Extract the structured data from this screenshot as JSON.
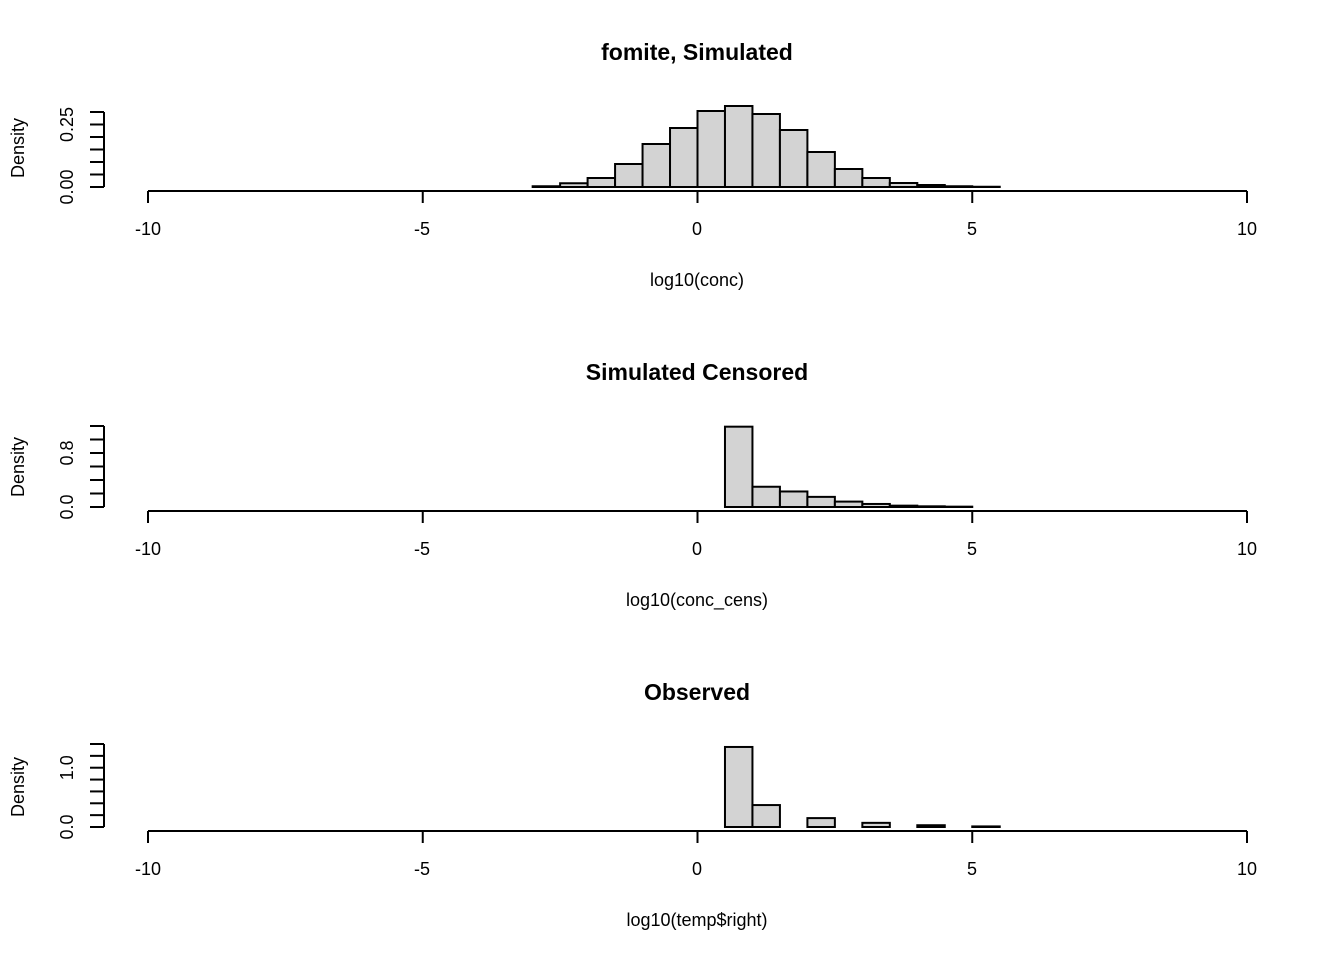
{
  "chart_data": [
    {
      "type": "bar",
      "title": "fomite, Simulated",
      "xlabel": "log10(conc)",
      "ylabel": "Density",
      "xlim": [
        -10,
        10
      ],
      "ylim": [
        0,
        0.3
      ],
      "x_ticks": [
        -10,
        -5,
        0,
        5,
        10
      ],
      "x_tick_labels": [
        "-10",
        "-5",
        "0",
        "5",
        "10"
      ],
      "y_ticks": [
        0,
        0.05,
        0.1,
        0.15,
        0.2,
        0.25,
        0.3
      ],
      "y_tick_labels": [
        {
          "value": 0,
          "label": "0.00"
        },
        {
          "value": 0.25,
          "label": "0.25"
        }
      ],
      "bin_width": 0.5,
      "bins": [
        {
          "x0": -3.0,
          "x1": -2.5,
          "density": 0.003
        },
        {
          "x0": -2.5,
          "x1": -2.0,
          "density": 0.015
        },
        {
          "x0": -2.0,
          "x1": -1.5,
          "density": 0.036
        },
        {
          "x0": -1.5,
          "x1": -1.0,
          "density": 0.092
        },
        {
          "x0": -1.0,
          "x1": -0.5,
          "density": 0.172
        },
        {
          "x0": -0.5,
          "x1": 0.0,
          "density": 0.236
        },
        {
          "x0": 0.0,
          "x1": 0.5,
          "density": 0.304
        },
        {
          "x0": 0.5,
          "x1": 1.0,
          "density": 0.324
        },
        {
          "x0": 1.0,
          "x1": 1.5,
          "density": 0.292
        },
        {
          "x0": 1.5,
          "x1": 2.0,
          "density": 0.228
        },
        {
          "x0": 2.0,
          "x1": 2.5,
          "density": 0.14
        },
        {
          "x0": 2.5,
          "x1": 3.0,
          "density": 0.072
        },
        {
          "x0": 3.0,
          "x1": 3.5,
          "density": 0.036
        },
        {
          "x0": 3.5,
          "x1": 4.0,
          "density": 0.016
        },
        {
          "x0": 4.0,
          "x1": 4.5,
          "density": 0.008
        },
        {
          "x0": 4.5,
          "x1": 5.0,
          "density": 0.003
        },
        {
          "x0": 5.0,
          "x1": 5.5,
          "density": 0.001
        }
      ]
    },
    {
      "type": "bar",
      "title": "Simulated Censored",
      "xlabel": "log10(conc_cens)",
      "ylabel": "Density",
      "xlim": [
        -10,
        10
      ],
      "ylim": [
        0,
        1.2
      ],
      "x_ticks": [
        -10,
        -5,
        0,
        5,
        10
      ],
      "x_tick_labels": [
        "-10",
        "-5",
        "0",
        "5",
        "10"
      ],
      "y_ticks": [
        0,
        0.2,
        0.4,
        0.6,
        0.8,
        1.0,
        1.2
      ],
      "y_tick_labels": [
        {
          "value": 0,
          "label": "0.0"
        },
        {
          "value": 0.8,
          "label": "0.8"
        }
      ],
      "bin_width": 0.5,
      "bins": [
        {
          "x0": 0.5,
          "x1": 1.0,
          "density": 1.19
        },
        {
          "x0": 1.0,
          "x1": 1.5,
          "density": 0.3
        },
        {
          "x0": 1.5,
          "x1": 2.0,
          "density": 0.23
        },
        {
          "x0": 2.0,
          "x1": 2.5,
          "density": 0.15
        },
        {
          "x0": 2.5,
          "x1": 3.0,
          "density": 0.08
        },
        {
          "x0": 3.0,
          "x1": 3.5,
          "density": 0.045
        },
        {
          "x0": 3.5,
          "x1": 4.0,
          "density": 0.02
        },
        {
          "x0": 4.0,
          "x1": 4.5,
          "density": 0.01
        },
        {
          "x0": 4.5,
          "x1": 5.0,
          "density": 0.005
        }
      ]
    },
    {
      "type": "bar",
      "title": "Observed",
      "xlabel": "log10(temp$right)",
      "ylabel": "Density",
      "xlim": [
        -10,
        10
      ],
      "ylim": [
        0,
        1.4
      ],
      "x_ticks": [
        -10,
        -5,
        0,
        5,
        10
      ],
      "x_tick_labels": [
        "-10",
        "-5",
        "0",
        "5",
        "10"
      ],
      "y_ticks": [
        0,
        0.2,
        0.4,
        0.6,
        0.8,
        1.0,
        1.2,
        1.4
      ],
      "y_tick_labels": [
        {
          "value": 0,
          "label": "0.0"
        },
        {
          "value": 1.0,
          "label": "1.0"
        }
      ],
      "bin_width": 0.5,
      "bins": [
        {
          "x0": 0.5,
          "x1": 1.0,
          "density": 1.35
        },
        {
          "x0": 1.0,
          "x1": 1.5,
          "density": 0.37
        },
        {
          "x0": 1.5,
          "x1": 2.0,
          "density": 0
        },
        {
          "x0": 2.0,
          "x1": 2.5,
          "density": 0.15
        },
        {
          "x0": 2.5,
          "x1": 3.0,
          "density": 0
        },
        {
          "x0": 3.0,
          "x1": 3.5,
          "density": 0.07
        },
        {
          "x0": 3.5,
          "x1": 4.0,
          "density": 0
        },
        {
          "x0": 4.0,
          "x1": 4.5,
          "density": 0.03
        },
        {
          "x0": 4.5,
          "x1": 5.0,
          "density": 0
        },
        {
          "x0": 5.0,
          "x1": 5.5,
          "density": 0.01
        }
      ]
    }
  ],
  "colors": {
    "bar_fill": "#d3d3d3",
    "bar_stroke": "#000000",
    "background": "#ffffff"
  }
}
